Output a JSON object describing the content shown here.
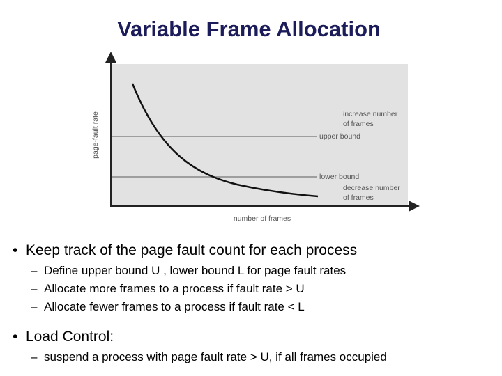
{
  "title": "Variable Frame Allocation",
  "diagram": {
    "y_axis_label": "page-fault rate",
    "x_axis_label": "number of frames",
    "annotations": [
      {
        "lines": [
          "increase number",
          "of frames"
        ]
      },
      {
        "lines": [
          "upper bound"
        ]
      },
      {
        "lines": [
          "lower bound"
        ]
      },
      {
        "lines": [
          "decrease number",
          "of frames"
        ]
      }
    ]
  },
  "bullets": [
    {
      "text": "Keep track of the page fault count for each process",
      "sub": [
        "Define upper bound U , lower bound L for page fault rates",
        "Allocate more frames to a process if fault rate > U",
        "Allocate fewer frames to a process if fault rate < L"
      ]
    },
    {
      "text": "Load Control:",
      "sub": [
        "suspend a process with page fault rate > U, if all frames occupied"
      ]
    }
  ]
}
